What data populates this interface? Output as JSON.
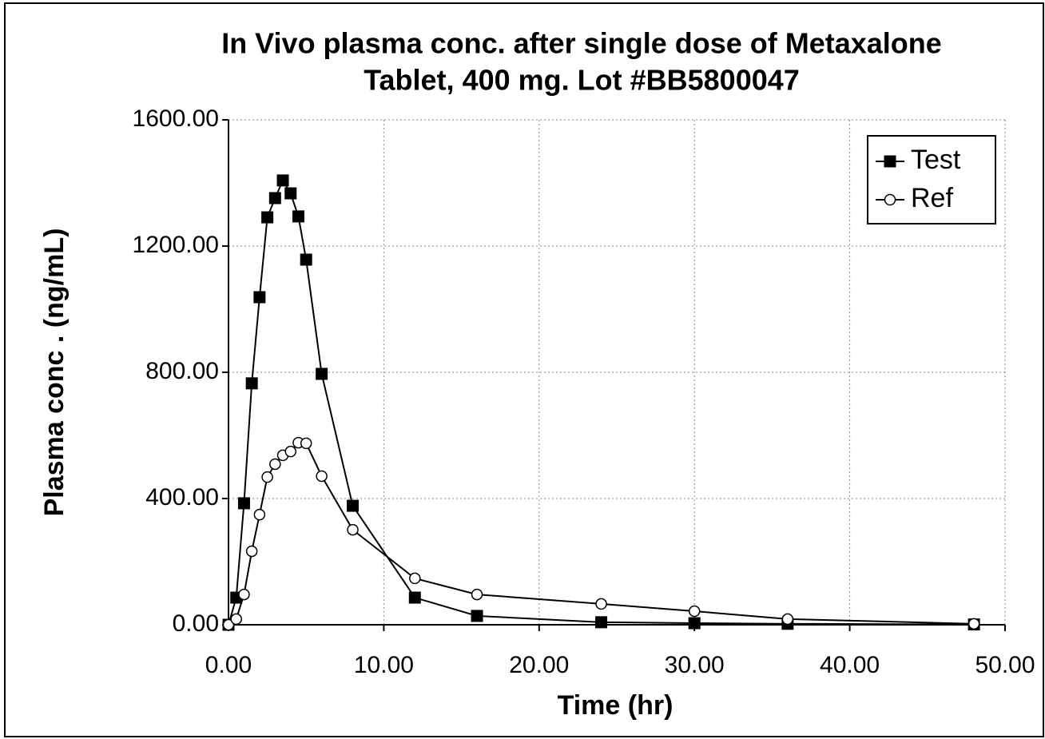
{
  "chart_data": {
    "type": "line",
    "title": [
      "In Vivo plasma conc. after single dose of Metaxalone",
      "Tablet, 400 mg. Lot #BB5800047"
    ],
    "x_label": "Time (hr)",
    "y_label": "Plasma conc . (ng/mL)",
    "x": [
      0,
      0.5,
      1,
      1.5,
      2,
      2.5,
      3,
      3.5,
      4,
      4.5,
      5,
      6,
      8,
      12,
      16,
      24,
      30,
      36,
      48
    ],
    "series": [
      {
        "name": "Test",
        "color": "#000000",
        "marker": "square",
        "values": [
          0,
          86,
          385,
          765,
          1038,
          1291,
          1352,
          1408,
          1367,
          1294,
          1157,
          795,
          377,
          86,
          28,
          8,
          5,
          3,
          1
        ]
      },
      {
        "name": "Ref",
        "color": "#000000",
        "marker": "circle",
        "values": [
          0,
          18,
          96,
          233,
          349,
          468,
          509,
          537,
          549,
          577,
          575,
          471,
          301,
          147,
          96,
          66,
          43,
          18,
          3
        ]
      }
    ],
    "xlim": [
      0,
      50
    ],
    "ylim": [
      0,
      1600
    ],
    "xticks": [
      {
        "value": 0,
        "label": "0.00"
      },
      {
        "value": 10,
        "label": "10.00"
      },
      {
        "value": 20,
        "label": "20.00"
      },
      {
        "value": 30,
        "label": "30.00"
      },
      {
        "value": 40,
        "label": "40.00"
      },
      {
        "value": 50,
        "label": "50.00"
      }
    ],
    "yticks": [
      {
        "value": 0,
        "label": "0.00"
      },
      {
        "value": 400,
        "label": "400.00"
      },
      {
        "value": 800,
        "label": "800.00"
      },
      {
        "value": 1200,
        "label": "1200.00"
      },
      {
        "value": 1600,
        "label": "1600.00"
      }
    ],
    "grid": true,
    "legend": "top-right"
  }
}
